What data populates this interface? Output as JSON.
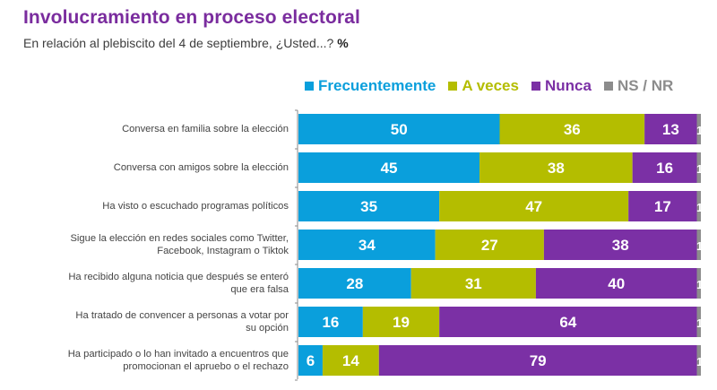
{
  "header": {
    "title": "Involucramiento en proceso electoral",
    "subtitle": "En relación al plebiscito del 4 de septiembre, ¿Usted...?",
    "subtitle_unit": "%"
  },
  "colors": {
    "title": "#7a2c9e",
    "Frecuentemente": "#0a9fdc",
    "A veces": "#b4bd00",
    "Nunca": "#7b30a5",
    "NS / NR": "#8c8c8c"
  },
  "chart_data": {
    "type": "bar",
    "orientation": "horizontal",
    "stacked": true,
    "title": "Involucramiento en proceso electoral",
    "subtitle": "En relación al plebiscito del 4 de septiembre, ¿Usted...? %",
    "xlabel": "",
    "ylabel": "",
    "xlim": [
      0,
      100
    ],
    "grid": false,
    "legend_position": "top-right",
    "categories": [
      "Conversa en familia sobre la elección",
      "Conversa con amigos sobre la elección",
      "Ha visto o escuchado programas políticos",
      "Sigue la elección en redes sociales como Twitter, Facebook, Instagram o Tiktok",
      "Ha recibido alguna noticia que después se enteró que era falsa",
      "Ha tratado de convencer a personas a votar por su opción",
      "Ha participado o lo han invitado a encuentros que promocionan el apruebo o el rechazo"
    ],
    "category_lines": [
      [
        "Conversa en familia sobre la elección"
      ],
      [
        "Conversa con amigos sobre la elección"
      ],
      [
        "Ha visto o escuchado programas políticos"
      ],
      [
        "Sigue la elección en redes sociales como Twitter,",
        "Facebook, Instagram o Tiktok"
      ],
      [
        "Ha recibido alguna noticia que después se enteró",
        "que era falsa"
      ],
      [
        "Ha tratado de convencer a personas a votar por",
        "su opción"
      ],
      [
        "Ha participado o lo han invitado a encuentros que",
        "promocionan el apruebo o el rechazo"
      ]
    ],
    "series": [
      {
        "name": "Frecuentemente",
        "values": [
          50,
          45,
          35,
          34,
          28,
          16,
          6
        ]
      },
      {
        "name": "A veces",
        "values": [
          36,
          38,
          47,
          27,
          31,
          19,
          14
        ]
      },
      {
        "name": "Nunca",
        "values": [
          13,
          16,
          17,
          38,
          40,
          64,
          79
        ]
      },
      {
        "name": "NS / NR",
        "values": [
          1,
          1,
          1,
          1,
          1,
          1,
          1
        ]
      }
    ]
  }
}
